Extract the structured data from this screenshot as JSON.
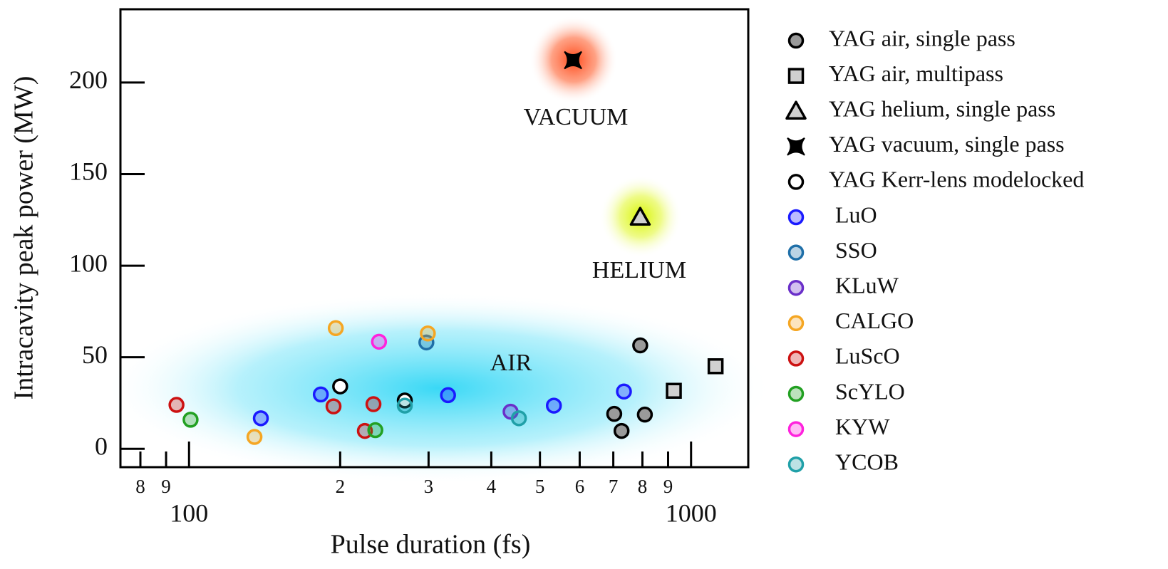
{
  "chart_data": {
    "type": "scatter",
    "x_label": "Pulse duration (fs)",
    "y_label": "Intracavity peak power (MW)",
    "xscale": "log",
    "xlim": [
      73,
      1300
    ],
    "ylim": [
      -10,
      240
    ],
    "xticks": [
      {
        "value": 80,
        "label": "8"
      },
      {
        "value": 90,
        "label": "9"
      },
      100,
      {
        "value": 200,
        "label": "2"
      },
      {
        "value": 300,
        "label": "3"
      },
      {
        "value": 400,
        "label": "4"
      },
      {
        "value": 500,
        "label": "5"
      },
      {
        "value": 600,
        "label": "6"
      },
      {
        "value": 700,
        "label": "7"
      },
      {
        "value": 800,
        "label": "8"
      },
      {
        "value": 900,
        "label": "9"
      },
      1000
    ],
    "yticks": [
      0,
      50,
      100,
      150,
      200
    ],
    "annotations": [
      "VACUUM",
      "HELIUM",
      "AIR"
    ],
    "series": [
      {
        "name": "YAG air, single pass",
        "marker": "filled-circle",
        "color": "#9a9a9a",
        "x": [
          792,
          703,
          727,
          809
        ],
        "values": [
          56.5,
          19.1,
          9.8,
          18.7
        ]
      },
      {
        "name": "YAG air, multipass",
        "marker": "square",
        "color": "#d0d0d0",
        "x": [
          924,
          1119
        ],
        "values": [
          31.7,
          45.1
        ]
      },
      {
        "name": "YAG helium, single pass",
        "marker": "triangle",
        "color": "#d0d0d0",
        "x": [
          792
        ],
        "values": [
          126.4
        ]
      },
      {
        "name": "YAG vacuum, single pass",
        "marker": "star",
        "color": "#000000",
        "x": [
          582
        ],
        "values": [
          212.2
        ]
      },
      {
        "name": "YAG Kerr-lens modelocked",
        "marker": "open-circle",
        "color": "#000000",
        "x": [
          200,
          269
        ],
        "values": [
          34.1,
          26.4
        ]
      },
      {
        "name": "LuO",
        "marker": "circle",
        "color": "#1a1aff",
        "x": [
          139,
          183,
          328,
          533,
          735
        ],
        "values": [
          16.7,
          29.7,
          29.3,
          23.6,
          31.3
        ]
      },
      {
        "name": "SSO",
        "marker": "circle",
        "color": "#1f6fa8",
        "x": [
          297
        ],
        "values": [
          58.1
        ]
      },
      {
        "name": "KLuW",
        "marker": "circle",
        "color": "#6a2fc9",
        "x": [
          437
        ],
        "values": [
          20.3
        ]
      },
      {
        "name": "CALGO",
        "marker": "circle",
        "color": "#f5a623",
        "x": [
          196,
          299,
          135
        ],
        "values": [
          65.9,
          63.0,
          6.5
        ]
      },
      {
        "name": "LuScO",
        "marker": "circle",
        "color": "#cc1111",
        "x": [
          94.4,
          194,
          233,
          224
        ],
        "values": [
          24.0,
          23.2,
          24.4,
          9.8
        ]
      },
      {
        "name": "ScYLO",
        "marker": "circle",
        "color": "#22a022",
        "x": [
          100.7,
          235
        ],
        "values": [
          15.9,
          10.2
        ]
      },
      {
        "name": "KYW",
        "marker": "circle",
        "color": "#ff22dd",
        "x": [
          239
        ],
        "values": [
          58.5
        ]
      },
      {
        "name": "YCOB",
        "marker": "circle",
        "color": "#20a0a8",
        "x": [
          269,
          454
        ],
        "values": [
          23.6,
          16.7
        ]
      }
    ]
  }
}
